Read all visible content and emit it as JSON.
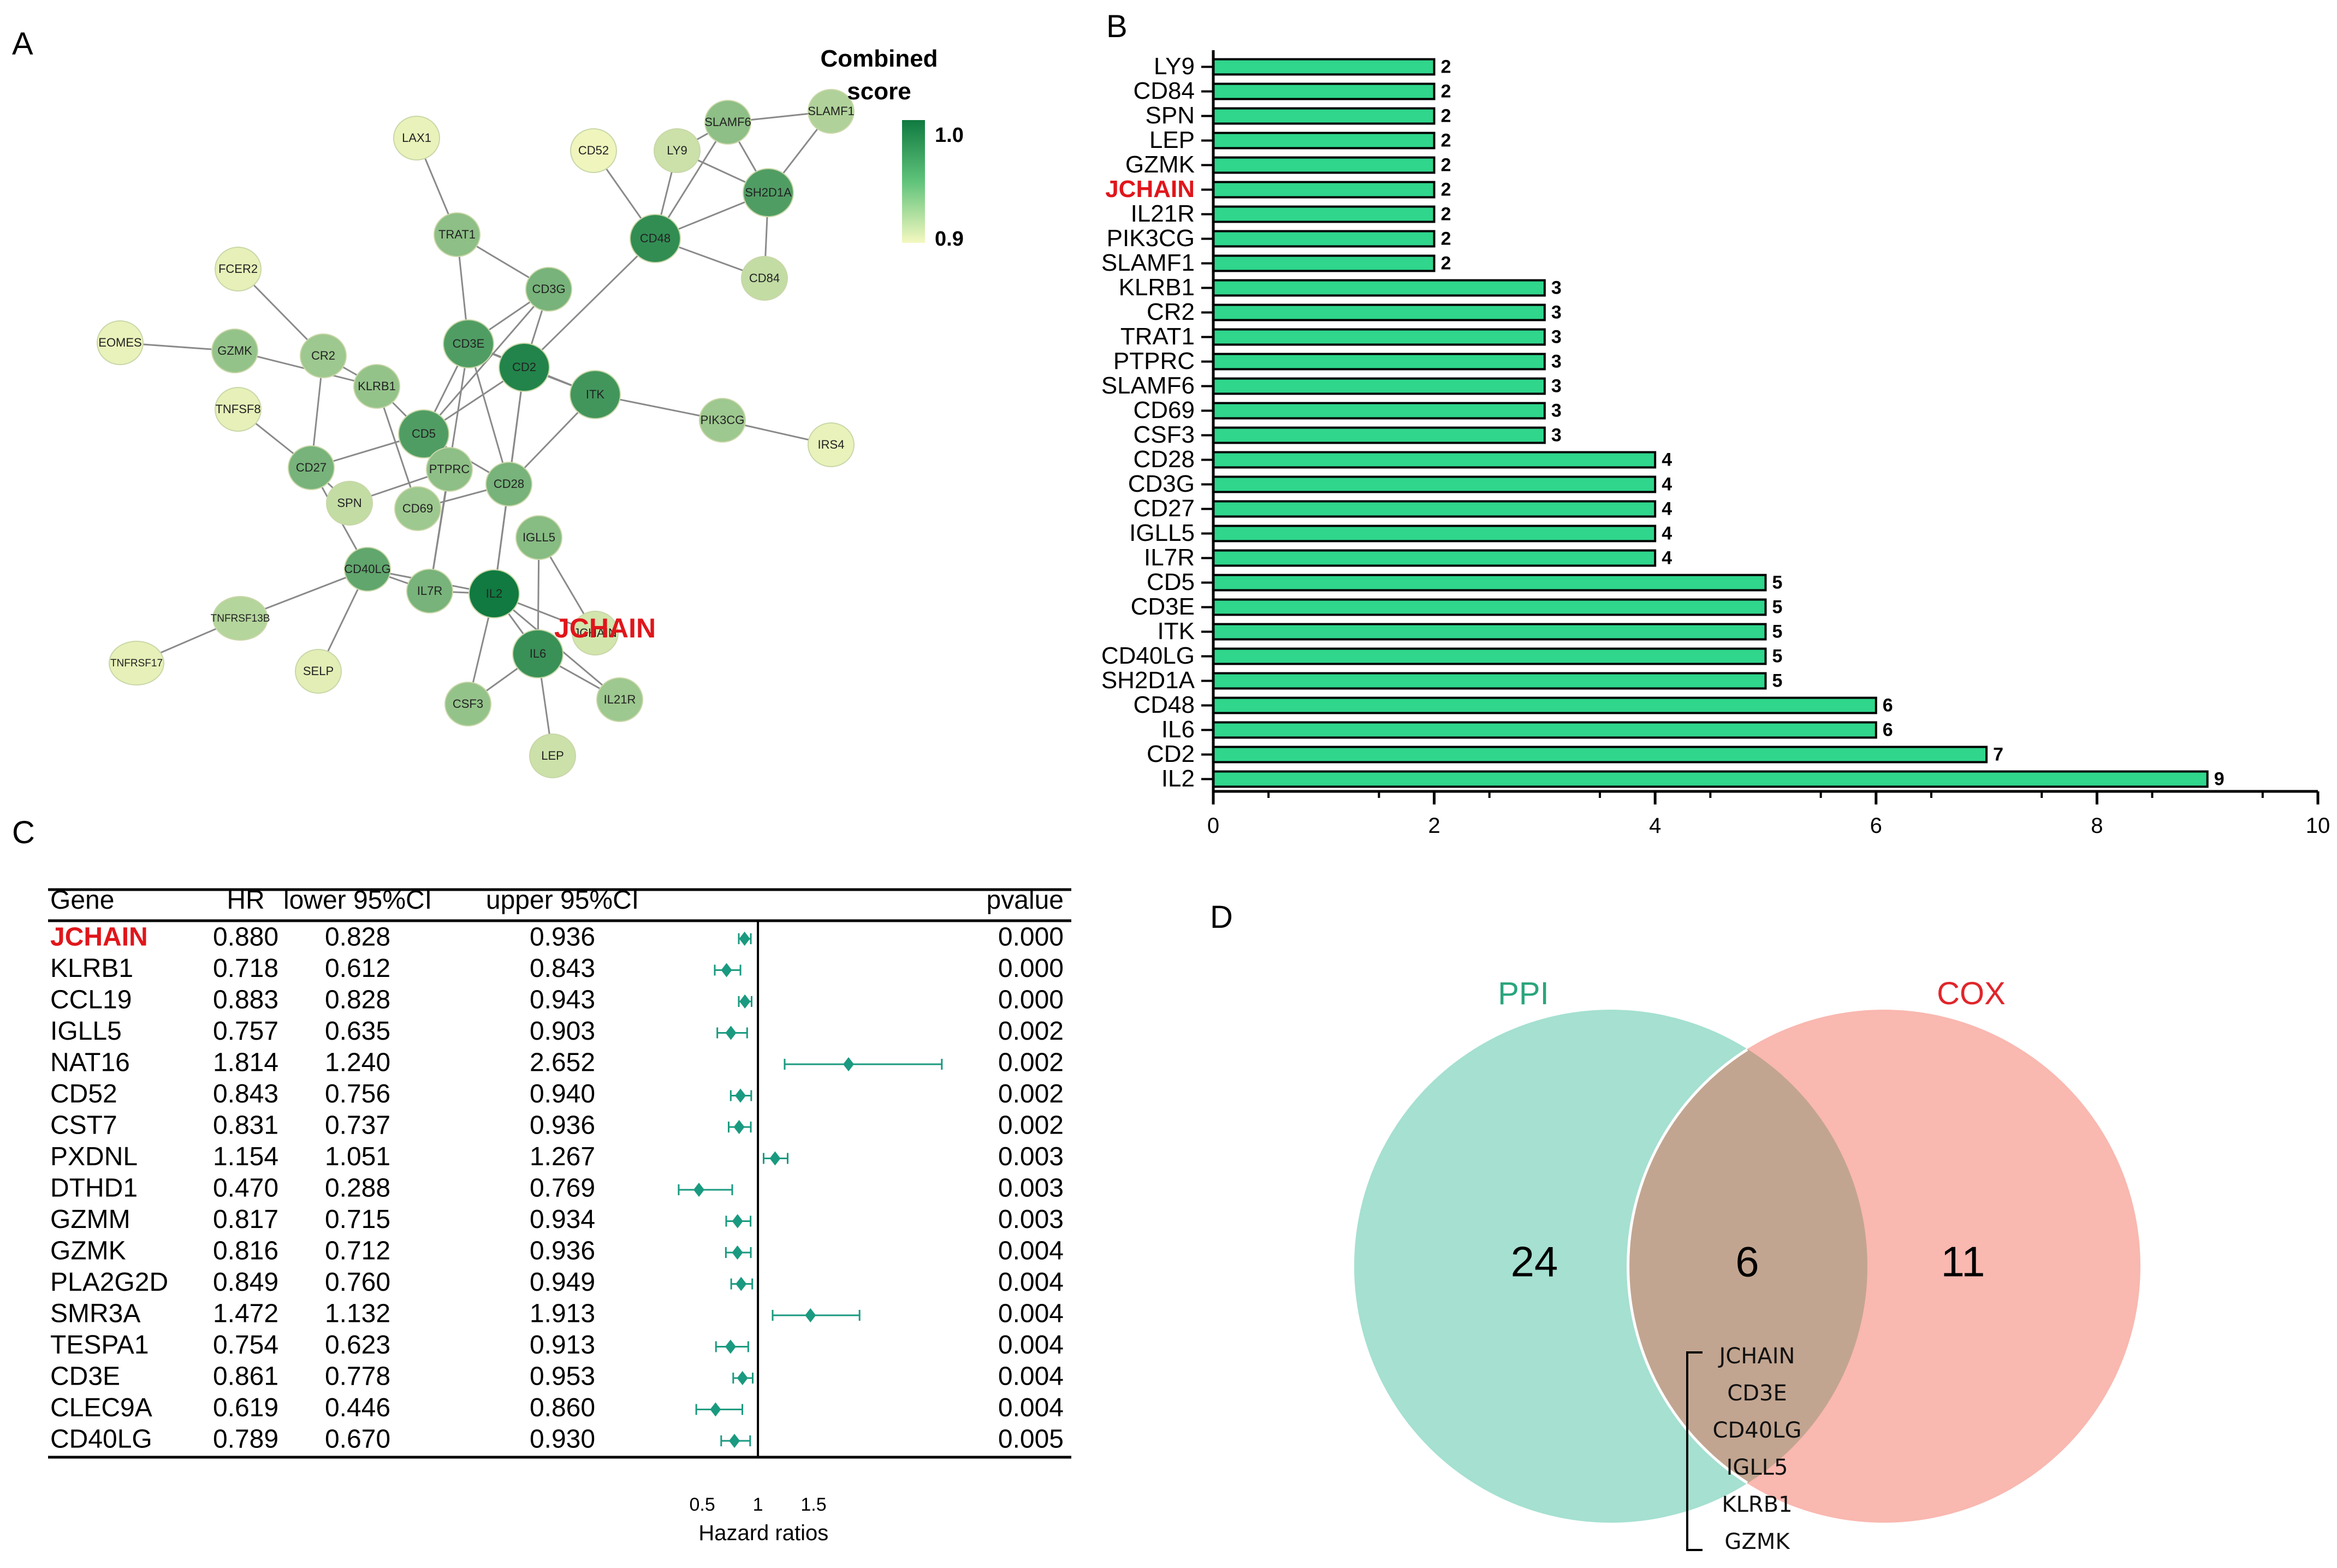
{
  "panels": {
    "a": "A",
    "b": "B",
    "c": "C",
    "d": "D"
  },
  "colors": {
    "bar_fill": "#2fd68c",
    "bar_stroke": "#000000",
    "forest": "#1a9a80",
    "highlight": "#e0161b",
    "ppi_fill": "#a5e0d0",
    "cox_fill": "#f9b8b0",
    "overlap_fill": "#c2a590",
    "ppi_text": "#2aa57d",
    "cox_text": "#e0262b",
    "node_low": "#f4f8c0",
    "node_high": "#107a40"
  },
  "network": {
    "legend_title_1": "Combined",
    "legend_title_2": "score",
    "legend_max": "1.0",
    "legend_min": "0.9",
    "highlight_label": "JCHAIN",
    "nodes": [
      {
        "id": "LAX1",
        "score": 0.05
      },
      {
        "id": "CD52",
        "score": 0.02
      },
      {
        "id": "LY9",
        "score": 0.18
      },
      {
        "id": "SLAMF6",
        "score": 0.45
      },
      {
        "id": "SLAMF1",
        "score": 0.3
      },
      {
        "id": "SH2D1A",
        "score": 0.72
      },
      {
        "id": "CD48",
        "score": 0.85
      },
      {
        "id": "CD84",
        "score": 0.22
      },
      {
        "id": "TRAT1",
        "score": 0.45
      },
      {
        "id": "FCER2",
        "score": 0.06
      },
      {
        "id": "CD3G",
        "score": 0.55
      },
      {
        "id": "EOMES",
        "score": 0.05
      },
      {
        "id": "GZMK",
        "score": 0.42
      },
      {
        "id": "CR2",
        "score": 0.38
      },
      {
        "id": "CD3E",
        "score": 0.72
      },
      {
        "id": "CD2",
        "score": 0.92
      },
      {
        "id": "ITK",
        "score": 0.78
      },
      {
        "id": "KLRB1",
        "score": 0.42
      },
      {
        "id": "TNFSF8",
        "score": 0.06
      },
      {
        "id": "PIK3CG",
        "score": 0.38
      },
      {
        "id": "IRS4",
        "score": 0.05
      },
      {
        "id": "CD5",
        "score": 0.72
      },
      {
        "id": "CD27",
        "score": 0.55
      },
      {
        "id": "PTPRC",
        "score": 0.45
      },
      {
        "id": "SPN",
        "score": 0.22
      },
      {
        "id": "CD28",
        "score": 0.55
      },
      {
        "id": "CD69",
        "score": 0.38
      },
      {
        "id": "IGLL5",
        "score": 0.48
      },
      {
        "id": "CD40LG",
        "score": 0.65
      },
      {
        "id": "IL7R",
        "score": 0.55
      },
      {
        "id": "IL2",
        "score": 1.0
      },
      {
        "id": "TNFRSF13B",
        "score": 0.28
      },
      {
        "id": "TNFRSF17",
        "score": 0.06
      },
      {
        "id": "SELP",
        "score": 0.08
      },
      {
        "id": "IL6",
        "score": 0.82
      },
      {
        "id": "JCHAIN",
        "score": 0.15
      },
      {
        "id": "CSF3",
        "score": 0.42
      },
      {
        "id": "IL21R",
        "score": 0.38
      },
      {
        "id": "LEP",
        "score": 0.18
      }
    ],
    "edges": [
      [
        "LAX1",
        "TRAT1"
      ],
      [
        "LY9",
        "SLAMF6"
      ],
      [
        "LY9",
        "CD48"
      ],
      [
        "LY9",
        "SH2D1A"
      ],
      [
        "SLAMF6",
        "SH2D1A"
      ],
      [
        "SLAMF6",
        "CD48"
      ],
      [
        "SLAMF1",
        "SH2D1A"
      ],
      [
        "SLAMF6",
        "SLAMF1"
      ],
      [
        "CD52",
        "CD48"
      ],
      [
        "CD48",
        "SH2D1A"
      ],
      [
        "CD48",
        "CD84"
      ],
      [
        "SH2D1A",
        "CD84"
      ],
      [
        "CD48",
        "CD2"
      ],
      [
        "TRAT1",
        "CD3E"
      ],
      [
        "TRAT1",
        "CD3G"
      ],
      [
        "CD3G",
        "CD3E"
      ],
      [
        "CD3G",
        "CD2"
      ],
      [
        "CD3G",
        "CD5"
      ],
      [
        "CD3E",
        "CD2"
      ],
      [
        "CD3E",
        "CD5"
      ],
      [
        "CD3E",
        "CD28"
      ],
      [
        "CD3E",
        "ITK"
      ],
      [
        "CD2",
        "ITK"
      ],
      [
        "CD2",
        "CD5"
      ],
      [
        "CD2",
        "CD28"
      ],
      [
        "ITK",
        "PIK3CG"
      ],
      [
        "PIK3CG",
        "IRS4"
      ],
      [
        "ITK",
        "CD28"
      ],
      [
        "FCER2",
        "CR2"
      ],
      [
        "EOMES",
        "GZMK"
      ],
      [
        "GZMK",
        "KLRB1"
      ],
      [
        "CR2",
        "KLRB1"
      ],
      [
        "CR2",
        "CD27"
      ],
      [
        "TNFSF8",
        "CD27"
      ],
      [
        "KLRB1",
        "CD5"
      ],
      [
        "KLRB1",
        "CD69"
      ],
      [
        "CD5",
        "CD27"
      ],
      [
        "CD5",
        "PTPRC"
      ],
      [
        "CD5",
        "CD28"
      ],
      [
        "CD27",
        "SPN"
      ],
      [
        "CD27",
        "CD40LG"
      ],
      [
        "PTPRC",
        "SPN"
      ],
      [
        "PTPRC",
        "IL7R"
      ],
      [
        "CD28",
        "CD69"
      ],
      [
        "CD28",
        "IL2"
      ],
      [
        "IGLL5",
        "IL6"
      ],
      [
        "IGLL5",
        "JCHAIN"
      ],
      [
        "CD40LG",
        "IL2"
      ],
      [
        "CD40LG",
        "TNFRSF13B"
      ],
      [
        "CD40LG",
        "SELP"
      ],
      [
        "CD40LG",
        "IL7R"
      ],
      [
        "TNFRSF13B",
        "TNFRSF17"
      ],
      [
        "IL7R",
        "IL2"
      ],
      [
        "IL2",
        "IL6"
      ],
      [
        "IL2",
        "CSF3"
      ],
      [
        "IL2",
        "IL21R"
      ],
      [
        "IL2",
        "JCHAIN"
      ],
      [
        "IL6",
        "LEP"
      ],
      [
        "IL6",
        "IL21R"
      ],
      [
        "IL6",
        "CSF3"
      ],
      [
        "CD3E",
        "IL7R"
      ],
      [
        "CD2",
        "IL2"
      ]
    ]
  },
  "chart_data": [
    {
      "type": "bar",
      "orientation": "horizontal",
      "categories": [
        "LY9",
        "CD84",
        "SPN",
        "LEP",
        "GZMK",
        "JCHAIN",
        "IL21R",
        "PIK3CG",
        "SLAMF1",
        "KLRB1",
        "CR2",
        "TRAT1",
        "PTPRC",
        "SLAMF6",
        "CD69",
        "CSF3",
        "CD28",
        "CD3G",
        "CD27",
        "IGLL5",
        "IL7R",
        "CD5",
        "CD3E",
        "ITK",
        "CD40LG",
        "SH2D1A",
        "CD48",
        "IL6",
        "CD2",
        "IL2"
      ],
      "values": [
        2,
        2,
        2,
        2,
        2,
        2,
        2,
        2,
        2,
        3,
        3,
        3,
        3,
        3,
        3,
        3,
        4,
        4,
        4,
        4,
        4,
        5,
        5,
        5,
        5,
        5,
        6,
        6,
        7,
        9
      ],
      "highlight": "JCHAIN",
      "xlim": [
        0,
        10
      ],
      "xticks": [
        0,
        2,
        4,
        6,
        8,
        10
      ],
      "title": "",
      "xlabel": "",
      "ylabel": ""
    },
    {
      "type": "table",
      "subtype": "forest",
      "columns": [
        "Gene",
        "HR",
        "lower 95%CI",
        "upper 95%CI",
        "pvalue"
      ],
      "rows": [
        [
          "JCHAIN",
          "0.880",
          "0.828",
          "0.936",
          "0.000"
        ],
        [
          "KLRB1",
          "0.718",
          "0.612",
          "0.843",
          "0.000"
        ],
        [
          "CCL19",
          "0.883",
          "0.828",
          "0.943",
          "0.000"
        ],
        [
          "IGLL5",
          "0.757",
          "0.635",
          "0.903",
          "0.002"
        ],
        [
          "NAT16",
          "1.814",
          "1.240",
          "2.652",
          "0.002"
        ],
        [
          "CD52",
          "0.843",
          "0.756",
          "0.940",
          "0.002"
        ],
        [
          "CST7",
          "0.831",
          "0.737",
          "0.936",
          "0.002"
        ],
        [
          "PXDNL",
          "1.154",
          "1.051",
          "1.267",
          "0.003"
        ],
        [
          "DTHD1",
          "0.470",
          "0.288",
          "0.769",
          "0.003"
        ],
        [
          "GZMM",
          "0.817",
          "0.715",
          "0.934",
          "0.003"
        ],
        [
          "GZMK",
          "0.816",
          "0.712",
          "0.936",
          "0.004"
        ],
        [
          "PLA2G2D",
          "0.849",
          "0.760",
          "0.949",
          "0.004"
        ],
        [
          "SMR3A",
          "1.472",
          "1.132",
          "1.913",
          "0.004"
        ],
        [
          "TESPA1",
          "0.754",
          "0.623",
          "0.913",
          "0.004"
        ],
        [
          "CD3E",
          "0.861",
          "0.778",
          "0.953",
          "0.004"
        ],
        [
          "CLEC9A",
          "0.619",
          "0.446",
          "0.860",
          "0.004"
        ],
        [
          "CD40LG",
          "0.789",
          "0.670",
          "0.930",
          "0.005"
        ]
      ],
      "highlight": "JCHAIN",
      "xticks": [
        "0.5",
        "1",
        "1.5"
      ],
      "xlim": [
        0.2,
        2.8
      ],
      "reference_line": 1,
      "xlabel": "Hazard ratios"
    }
  ],
  "venn": {
    "left_label": "PPI",
    "right_label": "COX",
    "left_only": "24",
    "overlap": "6",
    "right_only": "11",
    "genes": [
      "JCHAIN",
      "CD3E",
      "CD40LG",
      "IGLL5",
      "KLRB1",
      "GZMK"
    ]
  }
}
